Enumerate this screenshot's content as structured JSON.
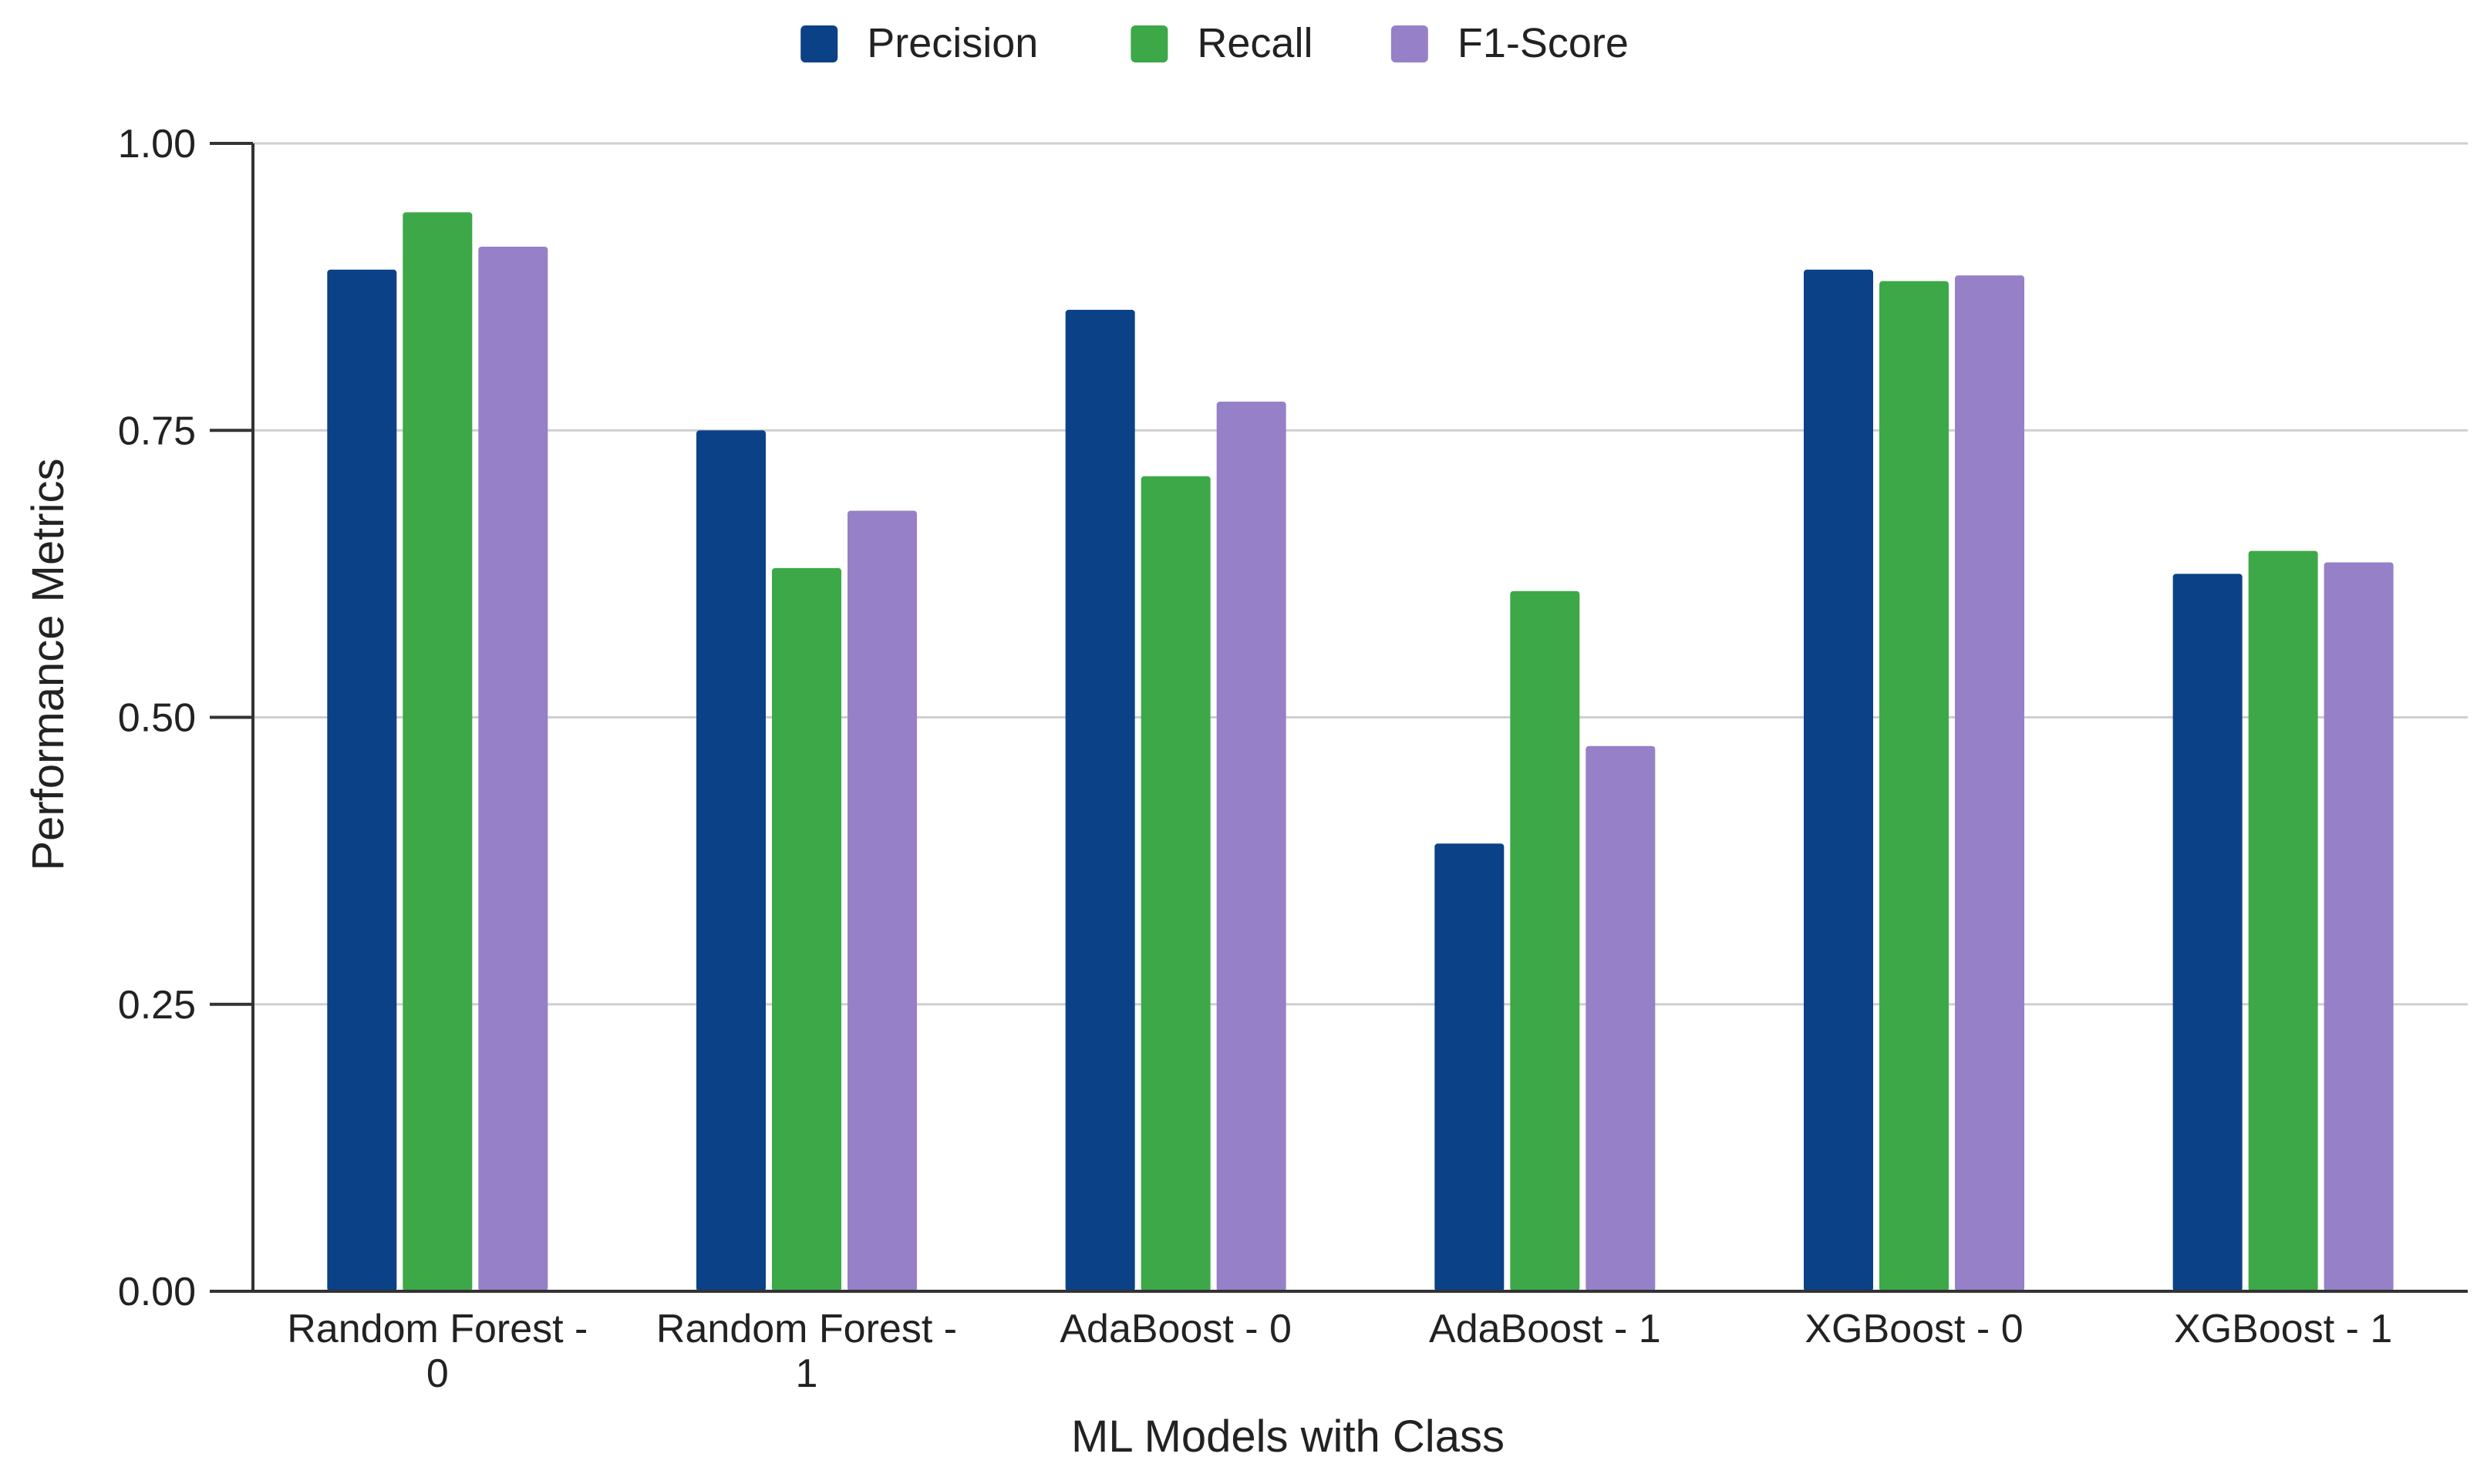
{
  "chart_data": {
    "type": "bar",
    "title": "",
    "xlabel": "ML Models with Class",
    "ylabel": "Performance Metrics",
    "ylim": [
      0,
      1.0
    ],
    "yticks": [
      "0.00",
      "0.25",
      "0.50",
      "0.75",
      "1.00"
    ],
    "ytick_values": [
      0,
      0.25,
      0.5,
      0.75,
      1.0
    ],
    "grid": true,
    "legend_position": "top-center",
    "categories": [
      [
        "Random Forest -",
        "0"
      ],
      [
        "Random Forest -",
        "1"
      ],
      [
        "AdaBoost - 0"
      ],
      [
        "AdaBoost - 1"
      ],
      [
        "XGBoost - 0"
      ],
      [
        "XGBoost - 1"
      ]
    ],
    "series": [
      {
        "name": "Precision",
        "color": "#0b4187",
        "values": [
          0.89,
          0.75,
          0.855,
          0.39,
          0.89,
          0.625
        ]
      },
      {
        "name": "Recall",
        "color": "#3da847",
        "values": [
          0.94,
          0.63,
          0.71,
          0.61,
          0.88,
          0.645
        ]
      },
      {
        "name": "F1-Score",
        "color": "#9680c8",
        "values": [
          0.91,
          0.68,
          0.775,
          0.475,
          0.885,
          0.635
        ]
      }
    ]
  }
}
